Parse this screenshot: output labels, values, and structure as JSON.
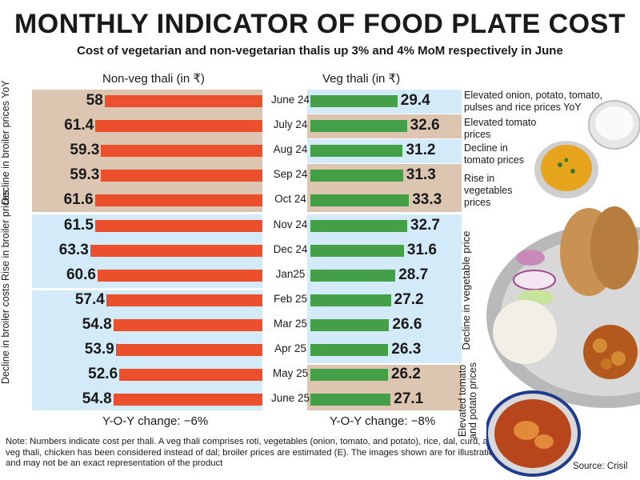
{
  "header": {
    "title": "MONTHLY INDICATOR OF FOOD PLATE COST",
    "subtitle": "Cost of vegetarian and non-vegetarian thalis up 3% and 4% MoM respectively in June"
  },
  "columns": {
    "left": "Non-veg thali (in ₹)",
    "right": "Veg thali (in ₹)"
  },
  "left_notes": [
    "Decline in broiler prices YoY",
    "Rise in broiler prices",
    "Decline in broiler costs"
  ],
  "right_notes": [
    "Elevated onion, potato, tomato, pulses and rice prices YoY",
    "Elevated tomato prices",
    "Decline in tomato prices",
    "Rise in vegetables prices",
    "Decline in vegetable price",
    "Elevated tomato and potato prices"
  ],
  "yoy": {
    "left": "Y-O-Y change: −6%",
    "right": "Y-O-Y change: −8%"
  },
  "footnote": "Note: Numbers indicate cost per thali. A veg thali comprises roti, vegetables (onion, tomato, and potato), rice, dal, curd, and salad. For non-veg thali, chicken has been considered instead of dal; broiler prices are estimated (E). The images shown are for illustration purposes only and may not be an exact representation of the product",
  "source": "Source: Crisil",
  "colors": {
    "nonveg_bar": "#eb4f2c",
    "veg_bar": "#43a047",
    "band_tan": "#dcc6b2",
    "band_blue": "#d3ebf8",
    "text": "#1a1a1a"
  },
  "chart_data": {
    "type": "bar",
    "orientation": "horizontal",
    "title": "MONTHLY INDICATOR OF FOOD PLATE COST",
    "subtitle": "Cost of vegetarian and non-vegetarian thalis up 3% and 4% MoM respectively in June",
    "categories": [
      "June 24",
      "July 24",
      "Aug 24",
      "Sep 24",
      "Oct 24",
      "Nov 24",
      "Dec 24",
      "Jan25",
      "Feb 25",
      "Mar 25",
      "Apr 25",
      "May 25",
      "June 25"
    ],
    "series": [
      {
        "name": "Non-veg thali (in ₹)",
        "values": [
          58,
          61.4,
          59.3,
          59.3,
          61.6,
          61.5,
          63.3,
          60.6,
          57.4,
          54.8,
          53.9,
          52.6,
          54.8
        ]
      },
      {
        "name": "Veg thali (in ₹)",
        "values": [
          29.4,
          32.6,
          31.2,
          31.3,
          33.3,
          32.7,
          31.6,
          28.7,
          27.2,
          26.6,
          26.3,
          26.2,
          27.1
        ]
      }
    ],
    "value_labels": {
      "nonveg": [
        "58",
        "61.4",
        "59.3",
        "59.3",
        "61.6",
        "61.5",
        "63.3",
        "60.6",
        "57.4",
        "54.8",
        "53.9",
        "52.6",
        "54.8"
      ],
      "veg": [
        "29.4",
        "32.6",
        "31.2",
        "31.3",
        "33.3",
        "32.7",
        "31.6",
        "28.7",
        "27.2",
        "26.6",
        "26.3",
        "26.2",
        "27.1"
      ]
    },
    "xlabel": "",
    "ylabel": ""
  }
}
